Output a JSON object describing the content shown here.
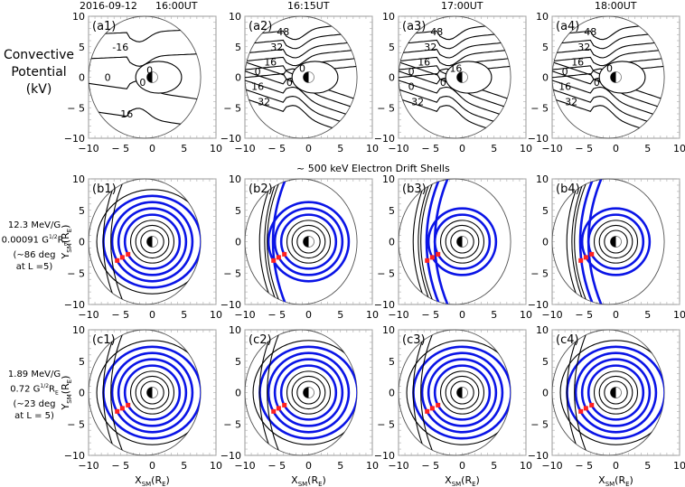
{
  "header": {
    "date": "2016-09-12",
    "times": [
      "16:00UT",
      "16:15UT",
      "17:00UT",
      "18:00UT"
    ],
    "section_title": "~ 500 keV Electron Drift Shells"
  },
  "row_labels": {
    "a": {
      "line1": "Convective",
      "line2": "Potential",
      "line3": "(kV)"
    },
    "b": {
      "line1": "12.3 MeV/G",
      "line2": "0.00091 G¹ᐟ²Rₑ",
      "line3": "(~86 deg",
      "line4": "at L =5)"
    },
    "c": {
      "line1": "1.89 MeV/G",
      "line2": "0.72 G¹ᐟ²Rₑ",
      "line3": "(~23 deg",
      "line4": "at L = 5)"
    }
  },
  "axes": {
    "xlabel": "X_SM(R_E)",
    "ylabel": "Y_SM(R_E)",
    "ticks": [
      "10",
      "5",
      "0",
      "− 5",
      "−10"
    ],
    "xticks": [
      "−10",
      "− 5",
      "0",
      "5",
      "10"
    ]
  },
  "colors": {
    "drift_shell": "#0a14e6",
    "marker": "#ff2020",
    "contour": "#000000",
    "boundary": "#555555"
  },
  "chart_data": [
    {
      "type": "contour",
      "title": "Convective Potential (kV)",
      "xlabel": "",
      "ylabel": "",
      "xlim": [
        -10,
        10
      ],
      "ylim": [
        -10,
        10
      ],
      "panels": [
        {
          "id": "(a1)",
          "time": "16:00UT",
          "contour_labels": [
            "-16",
            "0",
            "0",
            "0",
            "16"
          ]
        },
        {
          "id": "(a2)",
          "time": "16:15UT",
          "contour_labels": [
            "48",
            "32",
            "16",
            "0",
            "0",
            "0",
            "16",
            "32"
          ]
        },
        {
          "id": "(a3)",
          "time": "17:00UT",
          "contour_labels": [
            "48",
            "32",
            "16",
            "0",
            "0",
            "16",
            "0",
            "32"
          ]
        },
        {
          "id": "(a4)",
          "time": "18:00UT",
          "contour_labels": [
            "48",
            "32",
            "16",
            "0",
            "0",
            "0",
            "16",
            "32"
          ]
        }
      ]
    },
    {
      "type": "contour",
      "title": "~ 500 keV Electron Drift Shells (12.3 MeV/G, 0.00091 G^1/2 RE)",
      "xlabel": "",
      "ylabel": "Y_SM(R_E)",
      "xlim": [
        -10,
        10
      ],
      "ylim": [
        -10,
        10
      ],
      "panels": [
        {
          "id": "(b1)",
          "time": "16:00UT"
        },
        {
          "id": "(b2)",
          "time": "16:15UT"
        },
        {
          "id": "(b3)",
          "time": "17:00UT"
        },
        {
          "id": "(b4)",
          "time": "18:00UT"
        }
      ],
      "markers": [
        [
          -5.5,
          -3.0
        ],
        [
          -4.7,
          -2.5
        ],
        [
          -3.8,
          -2.0
        ]
      ]
    },
    {
      "type": "contour",
      "title": "Drift Shells (1.89 MeV/G, 0.72 G^1/2 RE)",
      "xlabel": "X_SM(R_E)",
      "ylabel": "Y_SM(R_E)",
      "xlim": [
        -10,
        10
      ],
      "ylim": [
        -10,
        10
      ],
      "panels": [
        {
          "id": "(c1)",
          "time": "16:00UT"
        },
        {
          "id": "(c2)",
          "time": "16:15UT"
        },
        {
          "id": "(c3)",
          "time": "17:00UT"
        },
        {
          "id": "(c4)",
          "time": "18:00UT"
        }
      ],
      "markers": [
        [
          -5.5,
          -3.0
        ],
        [
          -4.7,
          -2.5
        ],
        [
          -3.8,
          -2.0
        ]
      ]
    }
  ]
}
